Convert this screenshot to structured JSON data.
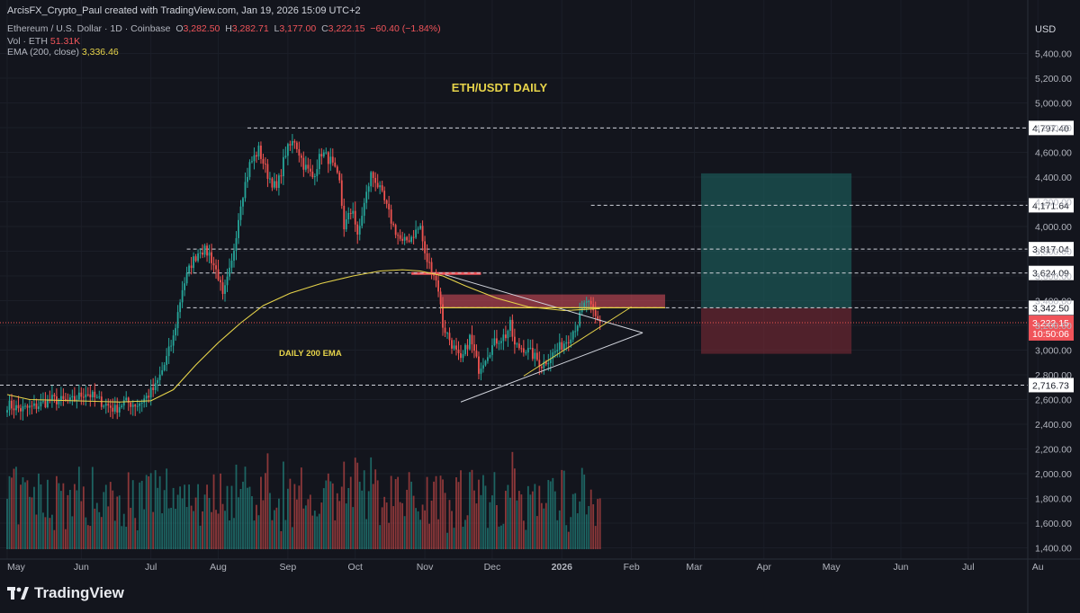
{
  "header": {
    "credit": "ArcisFX_Crypto_Paul created with TradingView.com, Jan 19, 2026 15:09 UTC+2",
    "symbol": "Ethereum / U.S. Dollar · 1D · Coinbase",
    "ohlc": {
      "o": "3,282.50",
      "h": "3,282.71",
      "l": "3,177.00",
      "c": "3,222.15",
      "chg": "−60.40 (−1.84%)"
    },
    "vol_label": "Vol · ETH",
    "vol_value": "51.31K",
    "ema_label": "EMA (200, close)",
    "ema_value": "3,336.46"
  },
  "brand": {
    "name": "TradingView"
  },
  "colors": {
    "up": "#26a69a",
    "down": "#ef5350",
    "ema": "#e6d34a",
    "bg": "#13151d",
    "text": "#b2b5be"
  },
  "chart_data": {
    "type": "candlestick",
    "title": "ETH/USDT DAILY",
    "annotation": "DAILY 200 EMA",
    "currency": "USD",
    "ylim": [
      1300,
      5600
    ],
    "y_ticks": [
      "1,400.00",
      "1,600.00",
      "1,800.00",
      "2,000.00",
      "2,200.00",
      "2,400.00",
      "2,600.00",
      "2,800.00",
      "3,000.00",
      "3,200.00",
      "3,400.00",
      "3,600.00",
      "3,800.00",
      "4,000.00",
      "4,200.00",
      "4,400.00",
      "4,600.00",
      "4,800.00",
      "5,000.00",
      "5,200.00",
      "5,400.00"
    ],
    "x_labels": [
      "May",
      "Jun",
      "Jul",
      "Aug",
      "Sep",
      "Oct",
      "Nov",
      "Dec",
      "2026",
      "Feb",
      "Mar",
      "Apr",
      "May",
      "Jun",
      "Jul",
      "Au"
    ],
    "levels": [
      "4,797.40",
      "4,171.64",
      "3,817.04",
      "3,624.09",
      "3,342.50",
      "2,716.73"
    ],
    "last_price": "3,222.15",
    "countdown": "10:50:06",
    "position": {
      "target": 4430,
      "entry": 3340,
      "stop": 2970
    },
    "resistance_zone": [
      3340,
      3450
    ],
    "price_anchors": [
      [
        0,
        2560
      ],
      [
        6,
        2520
      ],
      [
        12,
        2540
      ],
      [
        20,
        2600
      ],
      [
        28,
        2580
      ],
      [
        35,
        2660
      ],
      [
        40,
        2600
      ],
      [
        44,
        2560
      ],
      [
        48,
        2520
      ],
      [
        52,
        2580
      ],
      [
        58,
        2560
      ],
      [
        62,
        2620
      ],
      [
        66,
        2700
      ],
      [
        70,
        2880
      ],
      [
        74,
        3100
      ],
      [
        78,
        3500
      ],
      [
        82,
        3700
      ],
      [
        86,
        3820
      ],
      [
        90,
        3780
      ],
      [
        94,
        3600
      ],
      [
        96,
        3420
      ],
      [
        100,
        3700
      ],
      [
        104,
        4200
      ],
      [
        108,
        4500
      ],
      [
        112,
        4620
      ],
      [
        116,
        4420
      ],
      [
        120,
        4300
      ],
      [
        124,
        4600
      ],
      [
        128,
        4700
      ],
      [
        132,
        4500
      ],
      [
        136,
        4400
      ],
      [
        140,
        4600
      ],
      [
        144,
        4530
      ],
      [
        148,
        4350
      ],
      [
        150,
        4000
      ],
      [
        154,
        4150
      ],
      [
        156,
        3900
      ],
      [
        158,
        4100
      ],
      [
        162,
        4420
      ],
      [
        164,
        4380
      ],
      [
        168,
        4200
      ],
      [
        172,
        4000
      ],
      [
        176,
        3860
      ],
      [
        180,
        3920
      ],
      [
        184,
        4000
      ],
      [
        186,
        3760
      ],
      [
        190,
        3620
      ],
      [
        192,
        3500
      ],
      [
        194,
        3200
      ],
      [
        198,
        3050
      ],
      [
        202,
        2900
      ],
      [
        206,
        3100
      ],
      [
        210,
        2850
      ],
      [
        214,
        2980
      ],
      [
        218,
        3080
      ],
      [
        222,
        3120
      ],
      [
        224,
        3200
      ],
      [
        226,
        3030
      ],
      [
        230,
        3020
      ],
      [
        234,
        2960
      ],
      [
        238,
        2880
      ],
      [
        242,
        2950
      ],
      [
        246,
        3020
      ],
      [
        250,
        3100
      ],
      [
        254,
        3220
      ],
      [
        256,
        3320
      ],
      [
        258,
        3400
      ],
      [
        260,
        3330
      ],
      [
        262,
        3260
      ],
      [
        264,
        3222
      ]
    ],
    "ema200_anchors": [
      [
        0,
        2640
      ],
      [
        10,
        2600
      ],
      [
        30,
        2590
      ],
      [
        50,
        2580
      ],
      [
        64,
        2590
      ],
      [
        74,
        2680
      ],
      [
        84,
        2880
      ],
      [
        94,
        3060
      ],
      [
        104,
        3220
      ],
      [
        114,
        3360
      ],
      [
        126,
        3460
      ],
      [
        140,
        3540
      ],
      [
        154,
        3600
      ],
      [
        166,
        3640
      ],
      [
        176,
        3650
      ],
      [
        184,
        3640
      ],
      [
        194,
        3600
      ],
      [
        204,
        3520
      ],
      [
        218,
        3420
      ],
      [
        232,
        3350
      ],
      [
        248,
        3320
      ],
      [
        264,
        3336
      ]
    ]
  }
}
